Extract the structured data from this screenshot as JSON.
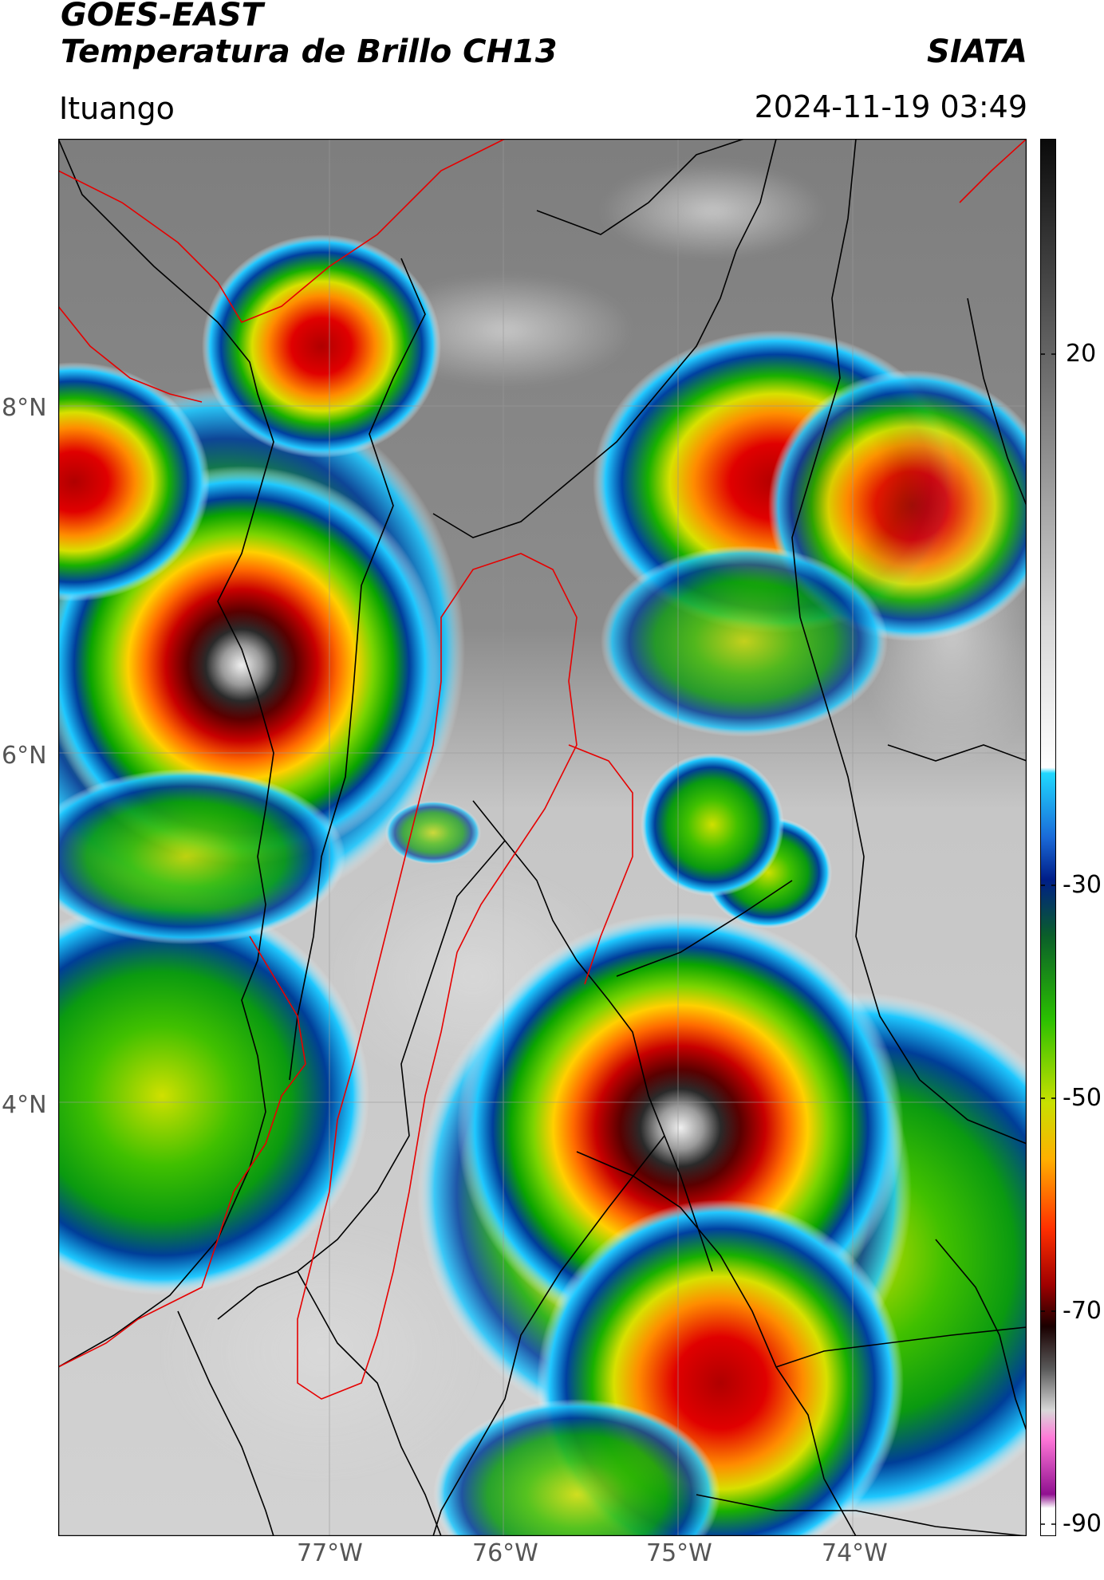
{
  "header": {
    "title_line1": "GOES-EAST",
    "title_line2": "Temperatura de Brillo CH13",
    "org": "SIATA",
    "location": "Ituango",
    "datetime": "2024-11-19 03:49"
  },
  "map": {
    "lat_ticks": [
      "8°N",
      "6°N",
      "4°N"
    ],
    "lon_ticks": [
      "77°W",
      "76°W",
      "75°W",
      "74°W"
    ],
    "extent": {
      "lon": [
        -78.55,
        -71.55
      ],
      "lat": [
        1.9,
        9.95
      ]
    }
  },
  "colorbar": {
    "tick_labels": [
      "20",
      "-30",
      "-50",
      "-70",
      "-90"
    ],
    "tick_values": [
      20,
      -30,
      -50,
      -70,
      -90
    ],
    "range": [
      -92,
      41
    ]
  },
  "colors": {
    "political_borders": "#000000",
    "basin_outline": "#e60000",
    "coastline": "#e60000"
  }
}
